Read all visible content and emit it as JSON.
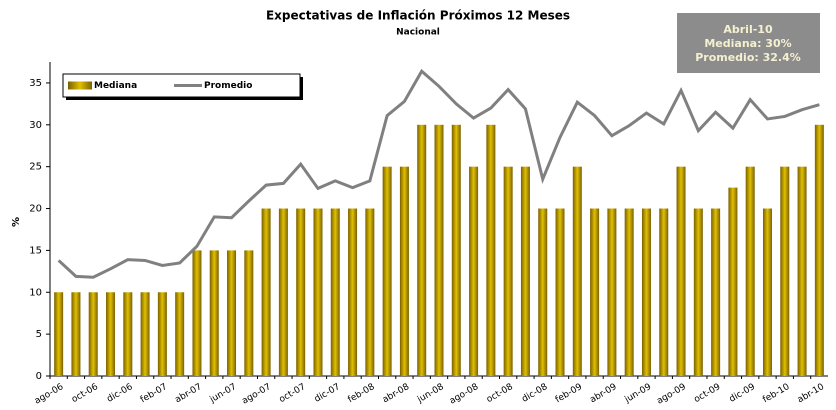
{
  "chart_data": {
    "type": "bar_line",
    "title": "Expectativas de Inflación Próximos 12 Meses",
    "subtitle": "Nacional",
    "y_label": "%",
    "annotation": [
      "Abril-10",
      "Mediana: 30%",
      "Promedio: 32.4%"
    ],
    "categories": [
      "ago-06",
      null,
      "oct-06",
      null,
      "dic-06",
      null,
      "feb-07",
      null,
      "abr-07",
      null,
      "jun-07",
      null,
      "ago-07",
      null,
      "oct-07",
      null,
      "dic-07",
      null,
      "feb-08",
      null,
      "abr-08",
      null,
      "jun-08",
      null,
      "ago-08",
      null,
      "oct-08",
      null,
      "dic-08",
      null,
      "feb-09",
      null,
      "abr-09",
      null,
      "jun-09",
      null,
      "ago-09",
      null,
      "oct-09",
      null,
      "dic-09",
      null,
      "feb-10",
      null,
      "abr-10"
    ],
    "series": [
      {
        "name": "Mediana",
        "type": "bar",
        "color": "#e0c000",
        "values": [
          10,
          10,
          10,
          10,
          10,
          10,
          10,
          10,
          15,
          15,
          15,
          15,
          20,
          20,
          20,
          20,
          20,
          20,
          20,
          25,
          25,
          30,
          30,
          30,
          25,
          30,
          25,
          25,
          20,
          20,
          25,
          20,
          20,
          20,
          20,
          20,
          25,
          20,
          20,
          22.5,
          25,
          20,
          25,
          25,
          30
        ]
      },
      {
        "name": "Promedio",
        "type": "line",
        "color": "#808080",
        "values": [
          13.8,
          11.9,
          11.8,
          12.8,
          13.9,
          13.8,
          13.2,
          13.5,
          15.5,
          19.0,
          18.9,
          20.9,
          22.8,
          23.0,
          25.3,
          22.4,
          23.3,
          22.5,
          23.3,
          31.1,
          32.8,
          36.4,
          34.6,
          32.5,
          30.8,
          32.0,
          34.2,
          31.9,
          23.5,
          28.5,
          32.7,
          31.1,
          28.7,
          29.9,
          31.4,
          30.1,
          34.1,
          29.3,
          31.5,
          29.6,
          33.0,
          30.7,
          31.0,
          31.8,
          32.4
        ]
      }
    ],
    "ylim": [
      0,
      37.5
    ],
    "yticks": [
      0,
      5,
      10,
      15,
      20,
      25,
      30,
      35
    ],
    "legend": "top-left"
  }
}
